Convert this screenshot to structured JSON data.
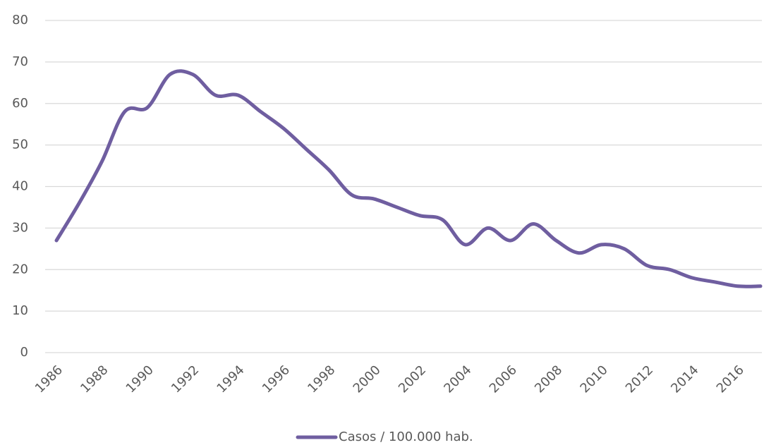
{
  "chart_data": {
    "type": "line",
    "x": [
      1986,
      1987,
      1988,
      1989,
      1990,
      1991,
      1992,
      1993,
      1994,
      1995,
      1996,
      1997,
      1998,
      1999,
      2000,
      2001,
      2002,
      2003,
      2004,
      2005,
      2006,
      2007,
      2008,
      2009,
      2010,
      2011,
      2012,
      2013,
      2014,
      2015,
      2016,
      2017
    ],
    "series": [
      {
        "name": "Casos / 100.000 hab.",
        "color": "#6f5ea0",
        "values": [
          27,
          36,
          46,
          58,
          59,
          67,
          67,
          62,
          62,
          58,
          54,
          49,
          44,
          38,
          37,
          35,
          33,
          32,
          26,
          30,
          27,
          31,
          27,
          24,
          26,
          25,
          21,
          20,
          18,
          17,
          16,
          16
        ]
      }
    ],
    "xlim": [
      1986,
      2017
    ],
    "xticks": [
      1986,
      1988,
      1990,
      1992,
      1994,
      1996,
      1998,
      2000,
      2002,
      2004,
      2006,
      2008,
      2010,
      2012,
      2014,
      2016
    ],
    "ylim": [
      0,
      80
    ],
    "yticks": [
      0,
      10,
      20,
      30,
      40,
      50,
      60,
      70,
      80
    ],
    "grid": true,
    "legend": "bottom"
  }
}
